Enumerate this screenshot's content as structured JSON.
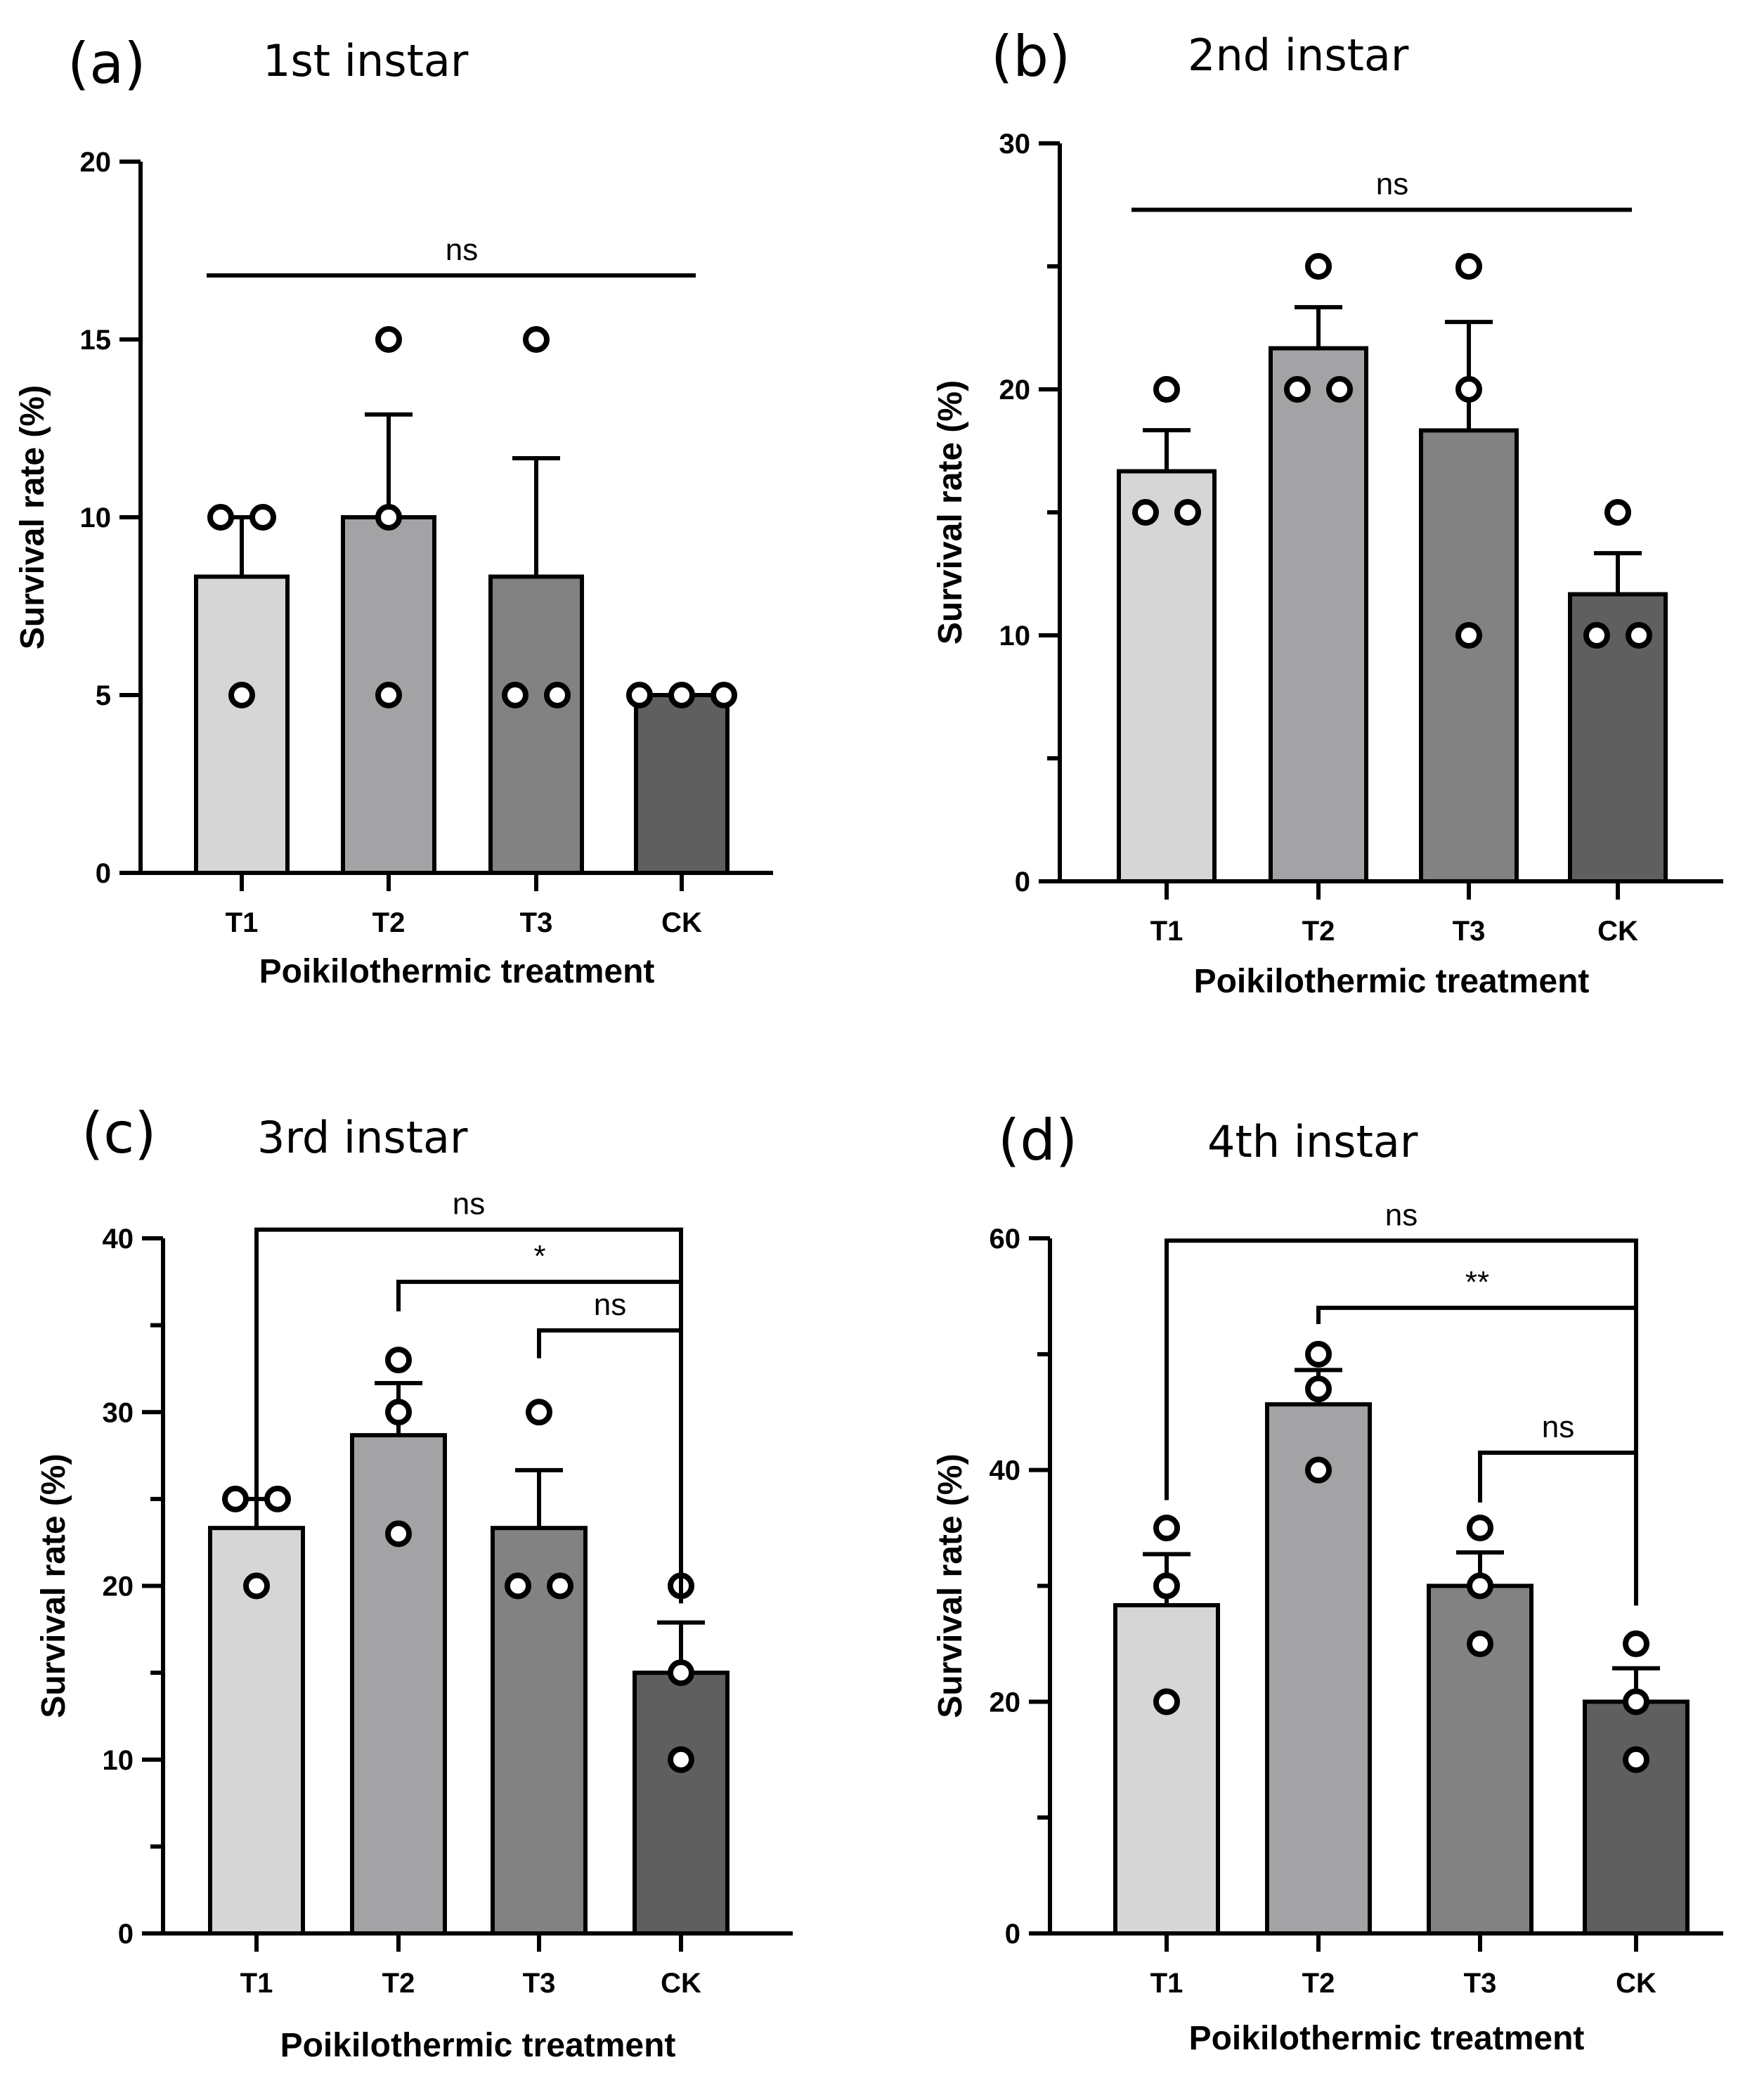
{
  "chart_data": [
    {
      "type": "bar",
      "panel_label": "(a)",
      "title": "1st instar",
      "categories": [
        "T1",
        "T2",
        "T3",
        "CK"
      ],
      "values": [
        8.33,
        10,
        8.33,
        5
      ],
      "errors": [
        1.67,
        2.89,
        3.33,
        0
      ],
      "points": [
        [
          10,
          10,
          5
        ],
        [
          15,
          10,
          5
        ],
        [
          15,
          5,
          5
        ],
        [
          5,
          5,
          5
        ]
      ],
      "xlabel": "Poikilothermic treatment",
      "ylabel": "Survival rate (%)",
      "ylim": [
        0,
        20
      ],
      "yticks": [
        0,
        5,
        10,
        15,
        20
      ],
      "ytick_labels": [
        "0",
        "5",
        "10",
        "15",
        "20"
      ],
      "bar_colors": [
        "#d6d6d6",
        "#a3a3a6",
        "#828282",
        "#5f5f5f"
      ],
      "significance": [
        {
          "style": "line",
          "from": 0,
          "to": 3,
          "label": "ns",
          "y": 16.8
        }
      ]
    },
    {
      "type": "bar",
      "panel_label": "(b)",
      "title": "2nd instar",
      "categories": [
        "T1",
        "T2",
        "T3",
        "CK"
      ],
      "values": [
        16.67,
        21.67,
        18.33,
        11.67
      ],
      "errors": [
        1.67,
        1.67,
        4.41,
        1.67
      ],
      "points": [
        [
          20,
          15,
          15
        ],
        [
          25,
          20,
          20
        ],
        [
          25,
          20,
          10
        ],
        [
          15,
          10,
          10
        ]
      ],
      "xlabel": "Poikilothermic treatment",
      "ylabel": "Survival rate (%)",
      "ylim": [
        0,
        30
      ],
      "yticks": [
        0,
        5,
        10,
        15,
        20,
        25,
        30
      ],
      "ytick_labels": [
        "0",
        "",
        "10",
        "",
        "20",
        "",
        "30"
      ],
      "bar_colors": [
        "#d6d6d6",
        "#a3a3a6",
        "#828282",
        "#5f5f5f"
      ],
      "significance": [
        {
          "style": "line",
          "from": 0,
          "to": 3,
          "label": "ns",
          "y": 27.3
        }
      ]
    },
    {
      "type": "bar",
      "panel_label": "(c)",
      "title": "3rd instar",
      "categories": [
        "T1",
        "T2",
        "T3",
        "CK"
      ],
      "values": [
        23.33,
        28.67,
        23.33,
        15
      ],
      "errors": [
        1.67,
        3.0,
        3.33,
        2.89
      ],
      "points": [
        [
          25,
          25,
          20
        ],
        [
          33,
          30,
          23
        ],
        [
          30,
          20,
          20
        ],
        [
          20,
          15,
          10
        ]
      ],
      "xlabel": "Poikilothermic treatment",
      "ylabel": "Survival rate (%)",
      "ylim": [
        0,
        40
      ],
      "yticks": [
        0,
        5,
        10,
        15,
        20,
        25,
        30,
        35,
        40
      ],
      "ytick_labels": [
        "0",
        "",
        "10",
        "",
        "20",
        "",
        "30",
        "",
        "40"
      ],
      "bar_colors": [
        "#d6d6d6",
        "#a3a3a6",
        "#828282",
        "#5f5f5f"
      ],
      "significance": [
        {
          "style": "bracket",
          "from": 0,
          "to": 3,
          "label": "ns",
          "y": 40.5,
          "left_end": 24.6,
          "right_end": 19.0
        },
        {
          "style": "bracket",
          "from": 1,
          "to": 3,
          "label": "*",
          "y": 37.5,
          "left_end": 35.8,
          "right_end": 19.0
        },
        {
          "style": "bracket",
          "from": 2,
          "to": 3,
          "label": "ns",
          "y": 34.7,
          "left_end": 33.1,
          "right_end": 19.0
        }
      ]
    },
    {
      "type": "bar",
      "panel_label": "(d)",
      "title": "4th instar",
      "categories": [
        "T1",
        "T2",
        "T3",
        "CK"
      ],
      "values": [
        28.33,
        45.67,
        30,
        20
      ],
      "errors": [
        4.41,
        2.96,
        2.89,
        2.89
      ],
      "points": [
        [
          35,
          30,
          20
        ],
        [
          50,
          47,
          40
        ],
        [
          35,
          30,
          25
        ],
        [
          25,
          20,
          15
        ]
      ],
      "xlabel": "Poikilothermic treatment",
      "ylabel": "Survival rate (%)",
      "ylim": [
        0,
        60
      ],
      "yticks": [
        0,
        10,
        20,
        30,
        40,
        50,
        60
      ],
      "ytick_labels": [
        "0",
        "",
        "20",
        "",
        "40",
        "",
        "60"
      ],
      "bar_colors": [
        "#d6d6d6",
        "#a3a3a6",
        "#828282",
        "#5f5f5f"
      ],
      "significance": [
        {
          "style": "bracket",
          "from": 0,
          "to": 3,
          "label": "ns",
          "y": 59.8,
          "left_end": 37.4,
          "right_end": 28.3
        },
        {
          "style": "bracket",
          "from": 1,
          "to": 3,
          "label": "**",
          "y": 54.0,
          "left_end": 52.6,
          "right_end": 28.3
        },
        {
          "style": "bracket",
          "from": 2,
          "to": 3,
          "label": "ns",
          "y": 41.5,
          "left_end": 37.2,
          "right_end": 28.3
        }
      ]
    }
  ]
}
